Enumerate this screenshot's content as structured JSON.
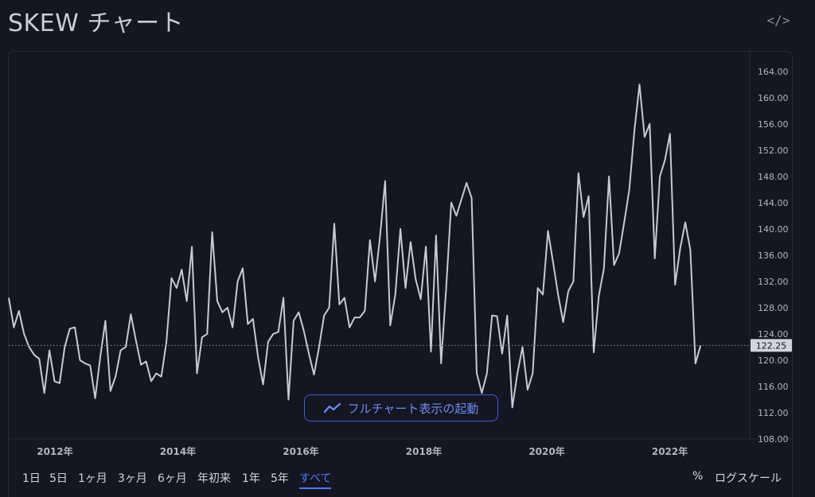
{
  "header": {
    "title": "SKEW チャート",
    "embed_icon": "code-icon"
  },
  "full_chart_button": {
    "label": "フルチャート表示の起動",
    "icon": "trend-line-icon"
  },
  "toolbar": {
    "ranges": [
      "1日",
      "5日",
      "1ヶ月",
      "3ヶ月",
      "6ヶ月",
      "年初来",
      "1年",
      "5年",
      "すべて"
    ],
    "active_range": "すべて",
    "percent_label": "%",
    "log_scale_label": "ログスケール"
  },
  "colors": {
    "background": "#141622",
    "line": "#c8cad2",
    "accent": "#4f79ff",
    "grid": "#262a36"
  },
  "chart_data": {
    "type": "line",
    "title": "",
    "xlabel": "",
    "ylabel": "",
    "grid": false,
    "x_start": 2011.25,
    "x_end": 2022.5,
    "x_range": [
      2011.25,
      2023.3
    ],
    "ylim": [
      108,
      167
    ],
    "y_ticks": [
      108,
      112,
      116,
      120,
      124,
      128,
      132,
      136,
      140,
      144,
      148,
      152,
      156,
      160,
      164
    ],
    "y_tick_labels": [
      "108.00",
      "112.00",
      "116.00",
      "120.00",
      "124.00",
      "128.00",
      "132.00",
      "136.00",
      "140.00",
      "144.00",
      "148.00",
      "152.00",
      "156.00",
      "160.00",
      "164.00"
    ],
    "x_ticks": [
      2012,
      2014,
      2016,
      2018,
      2020,
      2022
    ],
    "x_tick_labels": [
      "2012年",
      "2014年",
      "2016年",
      "2018年",
      "2020年",
      "2022年"
    ],
    "last_value": 122.25,
    "last_value_label": "122.25",
    "values": [
      129.5,
      125.0,
      127.5,
      124.0,
      122.0,
      120.8,
      120.2,
      115.0,
      121.5,
      116.8,
      116.5,
      122.0,
      124.8,
      125.0,
      120.0,
      119.5,
      119.2,
      114.2,
      120.5,
      126.0,
      115.3,
      117.5,
      121.5,
      122.0,
      127.0,
      123.0,
      119.3,
      119.8,
      116.8,
      118.0,
      117.5,
      122.8,
      132.5,
      131.0,
      133.8,
      129.0,
      137.3,
      118.0,
      123.5,
      124.0,
      139.5,
      129.0,
      127.3,
      128.0,
      125.0,
      132.0,
      134.0,
      125.5,
      126.3,
      120.5,
      116.3,
      122.8,
      124.0,
      124.3,
      129.5,
      114.0,
      126.0,
      127.3,
      124.5,
      121.0,
      117.8,
      122.0,
      126.8,
      128.0,
      140.8,
      128.5,
      129.5,
      125.0,
      126.5,
      126.5,
      127.5,
      138.3,
      132.0,
      139.0,
      147.3,
      125.3,
      130.0,
      140.0,
      131.0,
      138.0,
      132.3,
      129.3,
      137.3,
      121.3,
      139.0,
      119.5,
      131.0,
      144.0,
      142.0,
      144.5,
      147.0,
      144.7,
      118.0,
      115.0,
      118.0,
      126.8,
      126.7,
      121.0,
      126.8,
      112.8,
      118.0,
      122.0,
      115.5,
      118.0,
      131.0,
      130.0,
      139.7,
      135.0,
      130.0,
      125.8,
      130.5,
      132.0,
      148.5,
      141.8,
      145.0,
      121.2,
      129.8,
      134.0,
      148.0,
      134.5,
      136.3,
      141.0,
      146.0,
      155.0,
      162.0,
      154.0,
      156.0,
      135.5,
      148.0,
      150.5,
      154.5,
      131.5,
      137.0,
      141.0,
      136.8,
      119.5,
      122.25
    ]
  }
}
